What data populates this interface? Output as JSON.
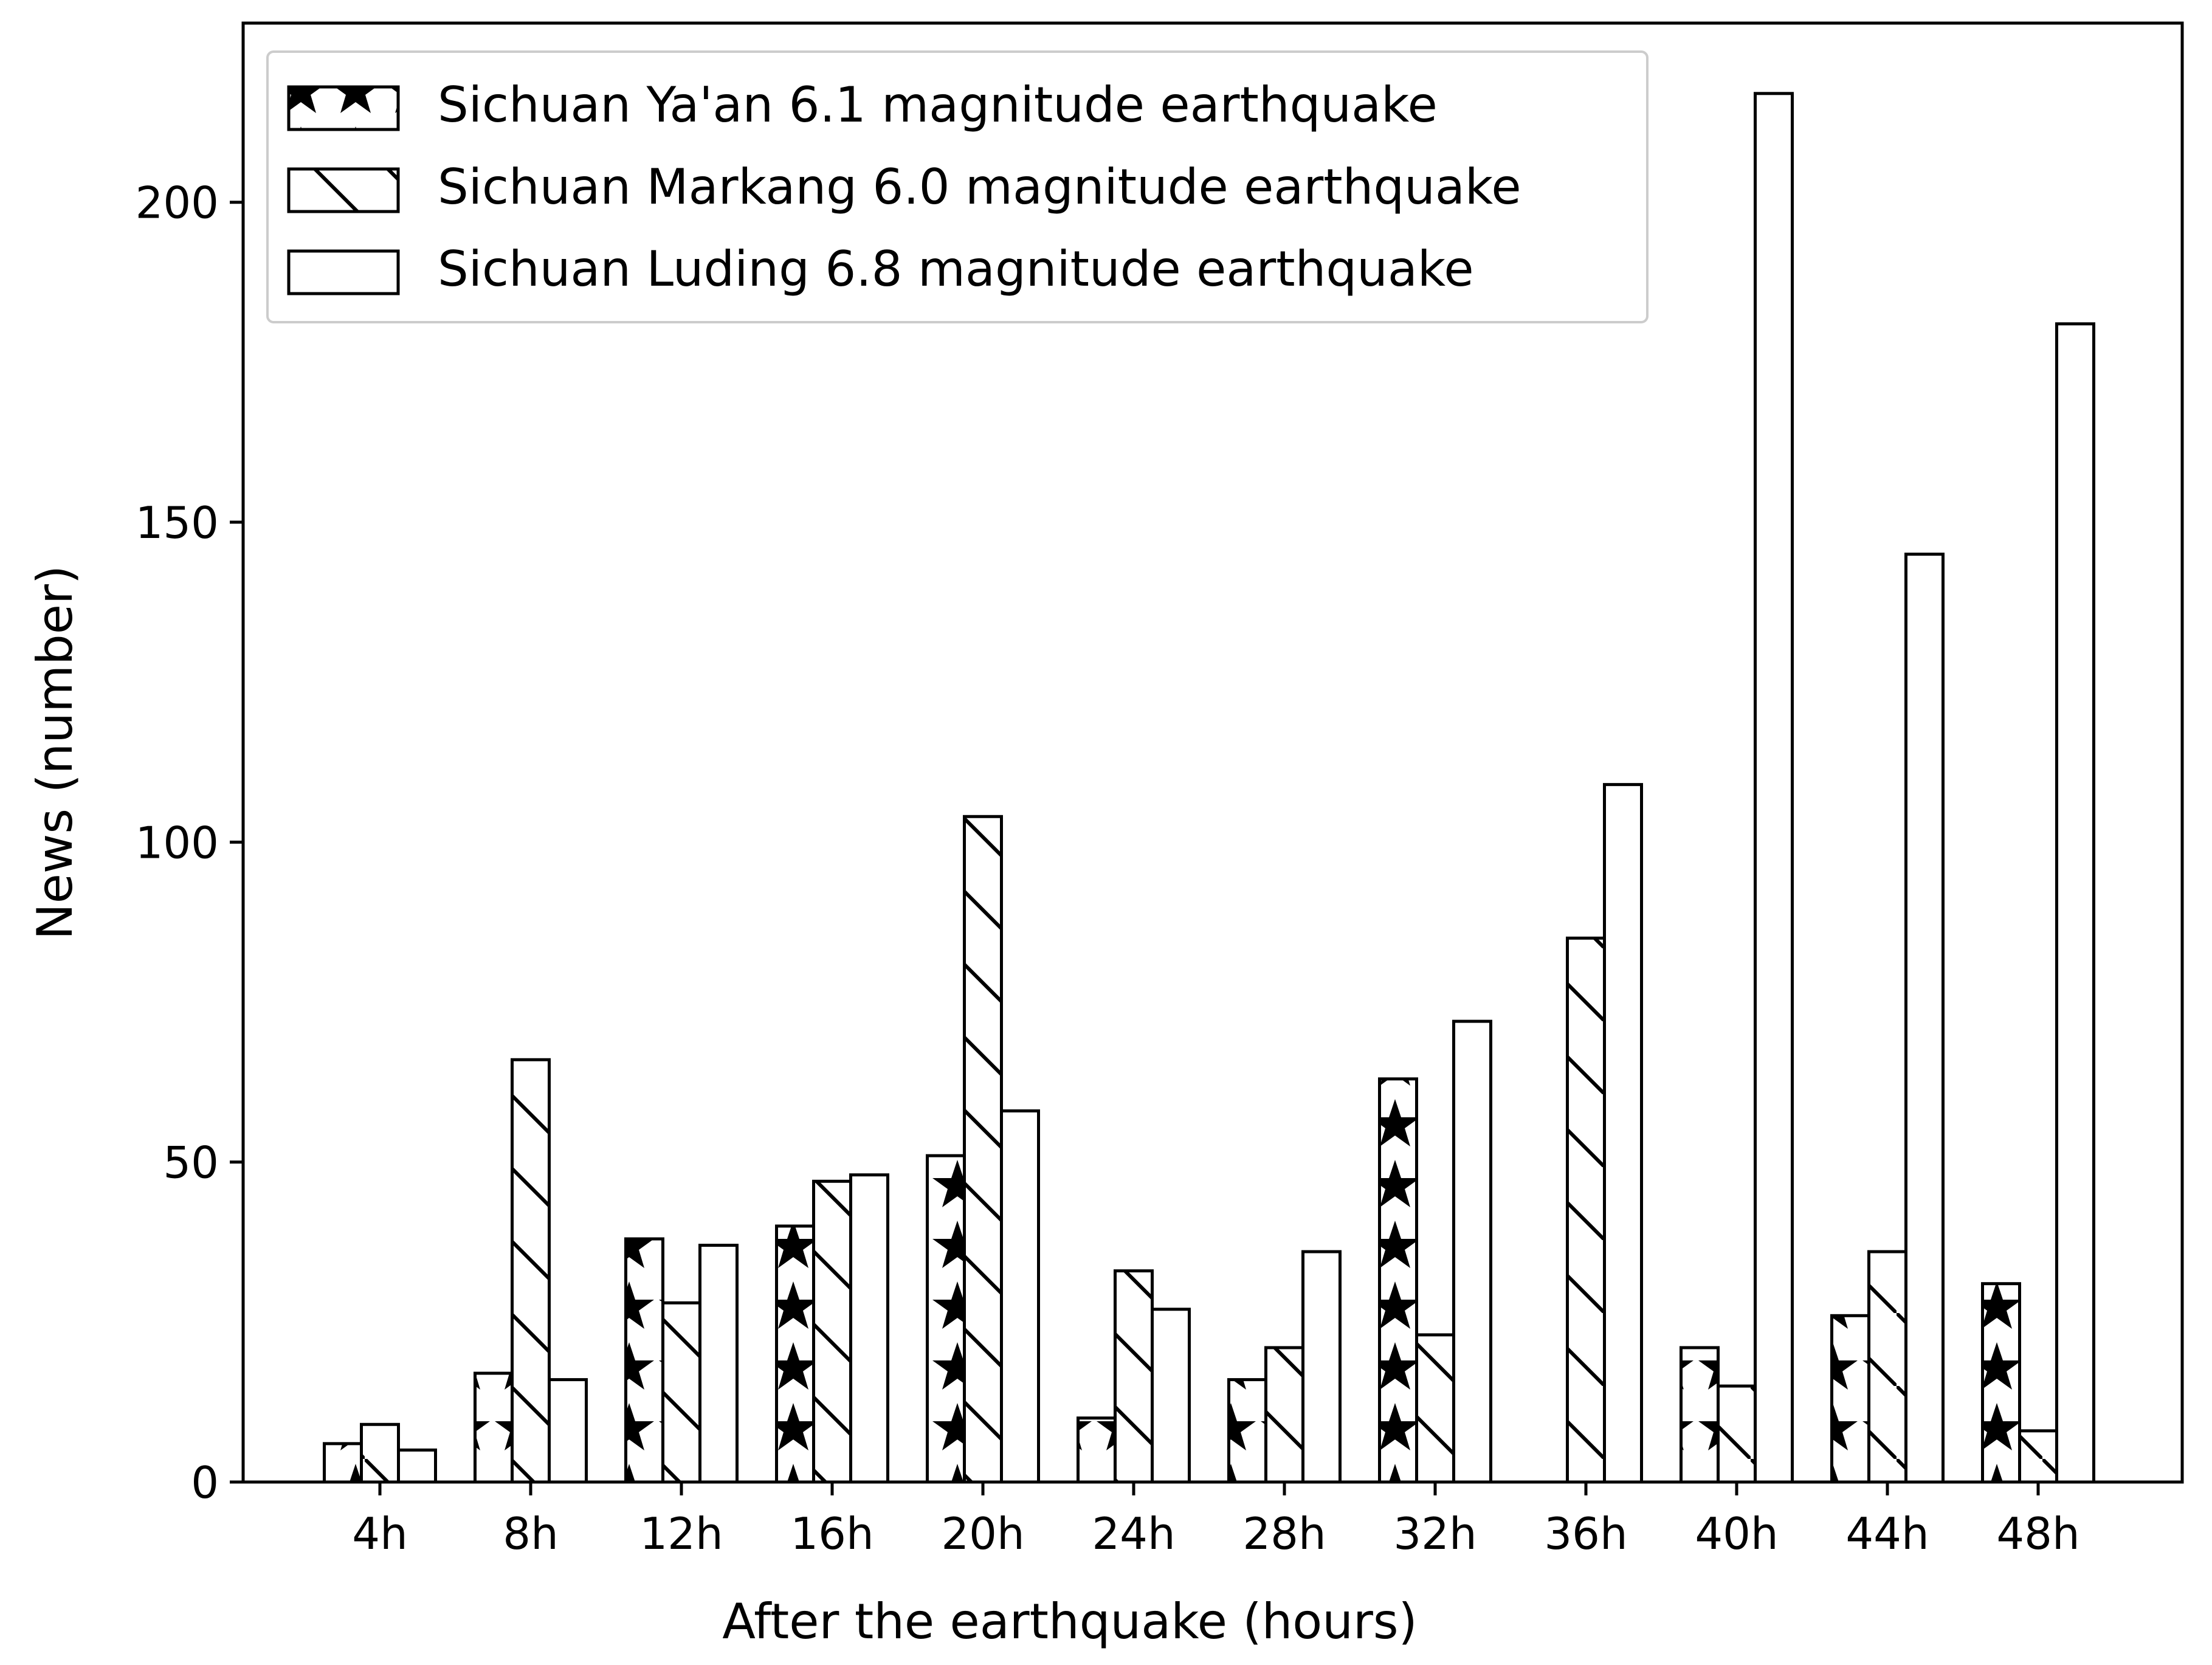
{
  "chart_data": {
    "type": "bar",
    "xlabel": "After the earthquake (hours)",
    "ylabel": "News (number)",
    "categories": [
      "4h",
      "8h",
      "12h",
      "16h",
      "20h",
      "24h",
      "28h",
      "32h",
      "36h",
      "40h",
      "44h",
      "48h"
    ],
    "series": [
      {
        "name": "Sichuan Ya'an 6.1 magnitude earthquake",
        "pattern": "stars",
        "values": [
          6,
          17,
          38,
          40,
          51,
          10,
          16,
          63,
          0,
          21,
          26,
          31
        ]
      },
      {
        "name": "Sichuan Markang 6.0 magnitude earthquake",
        "pattern": "hatch",
        "values": [
          9,
          66,
          28,
          47,
          104,
          33,
          21,
          23,
          85,
          15,
          36,
          8
        ]
      },
      {
        "name": "Sichuan Luding 6.8 magnitude earthquake",
        "pattern": "empty",
        "values": [
          5,
          16,
          37,
          48,
          58,
          27,
          36,
          72,
          109,
          217,
          145,
          181
        ]
      }
    ],
    "ylim": [
      0,
      228
    ],
    "yticks": [
      0,
      50,
      100,
      150,
      200
    ],
    "grid": false,
    "legend_position": "top-left",
    "colors": {
      "edge": "#000000",
      "fill": "#ffffff"
    }
  }
}
